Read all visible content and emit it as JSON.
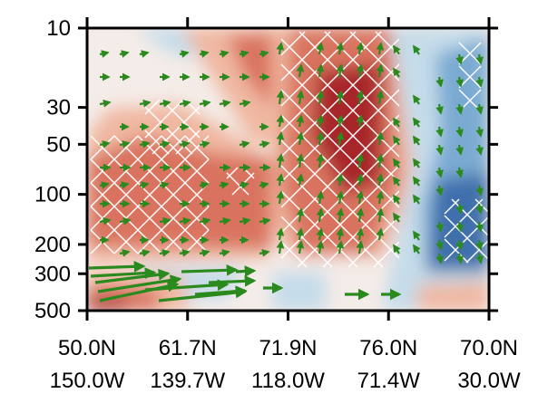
{
  "chart_data": {
    "type": "heatmap",
    "title": "",
    "xlabel": "",
    "ylabel": "",
    "y_scale": "log",
    "y_reversed": true,
    "ylim": [
      500,
      10
    ],
    "y_ticks": [
      {
        "value": 10,
        "label": "10"
      },
      {
        "value": 30,
        "label": "30"
      },
      {
        "value": 50,
        "label": "50"
      },
      {
        "value": 100,
        "label": "100"
      },
      {
        "value": 200,
        "label": "200"
      },
      {
        "value": 300,
        "label": "300"
      },
      {
        "value": 500,
        "label": "500"
      }
    ],
    "x_ticks": [
      {
        "lat": "50.0N",
        "lon": "150.0W"
      },
      {
        "lat": "61.7N",
        "lon": "139.7W"
      },
      {
        "lat": "71.9N",
        "lon": "118.0W"
      },
      {
        "lat": "76.0N",
        "lon": "71.4W"
      },
      {
        "lat": "70.0N",
        "lon": "30.0W"
      }
    ],
    "shading": {
      "colors": {
        "strong_positive": "#a8282c",
        "positive": "#d9735f",
        "weak_positive": "#f0b8a1",
        "near_zero": "#f4ece8",
        "weak_negative": "#c5dcea",
        "negative": "#7aaad2",
        "strong_negative": "#3f6fac"
      }
    },
    "hatching": {
      "color": "#ffffff",
      "meaning": "significant"
    },
    "vectors": {
      "color": "#2b8a1e"
    }
  }
}
